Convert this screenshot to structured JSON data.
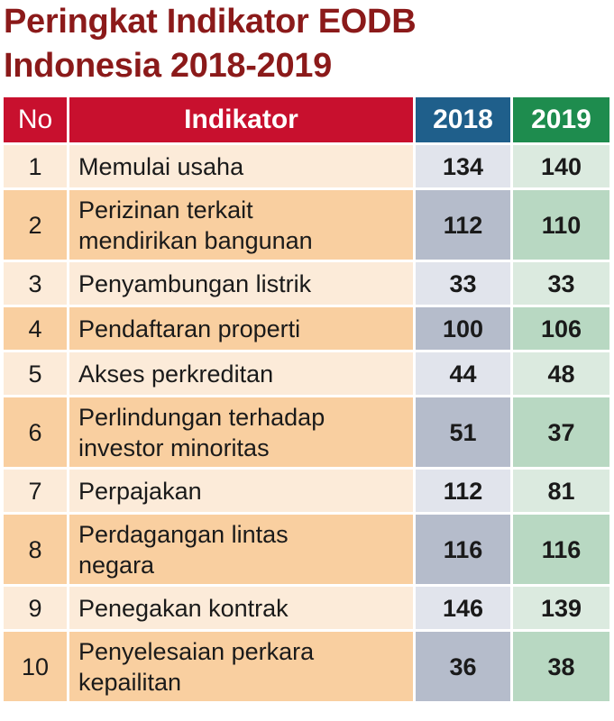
{
  "title": {
    "line1": "Peringkat Indikator EODB",
    "line2": "Indonesia 2018-2019"
  },
  "table": {
    "headers": {
      "no": "No",
      "indikator": "Indikator",
      "y2018": "2018",
      "y2019": "2019"
    },
    "rows": [
      {
        "no": "1",
        "line1": "Memulai usaha",
        "line2": "",
        "v2018": "134",
        "v2019": "140"
      },
      {
        "no": "2",
        "line1": "Perizinan terkait",
        "line2": "mendirikan bangunan",
        "v2018": "112",
        "v2019": "110"
      },
      {
        "no": "3",
        "line1": "Penyambungan listrik",
        "line2": "",
        "v2018": "33",
        "v2019": "33"
      },
      {
        "no": "4",
        "line1": "Pendaftaran properti",
        "line2": "",
        "v2018": "100",
        "v2019": "106"
      },
      {
        "no": "5",
        "line1": "Akses perkreditan",
        "line2": "",
        "v2018": "44",
        "v2019": "48"
      },
      {
        "no": "6",
        "line1": "Perlindungan terhadap",
        "line2": "investor minoritas",
        "v2018": "51",
        "v2019": "37"
      },
      {
        "no": "7",
        "line1": "Perpajakan",
        "line2": "",
        "v2018": "112",
        "v2019": "81"
      },
      {
        "no": "8",
        "line1": "Perdagangan lintas",
        "line2": "negara",
        "v2018": "116",
        "v2019": "116"
      },
      {
        "no": "9",
        "line1": "Penegakan kontrak",
        "line2": "",
        "v2018": "146",
        "v2019": "139"
      },
      {
        "no": "10",
        "line1": "Penyelesaian perkara",
        "line2": "kepailitan",
        "v2018": "36",
        "v2019": "38"
      }
    ]
  },
  "colors": {
    "title": "#8b1a1a",
    "header_red": "#c8102e",
    "header_2018": "#1f5f8b",
    "header_2019": "#1e8c4e",
    "row_light": "#fcebd9",
    "row_dark": "#f9cfa0"
  }
}
